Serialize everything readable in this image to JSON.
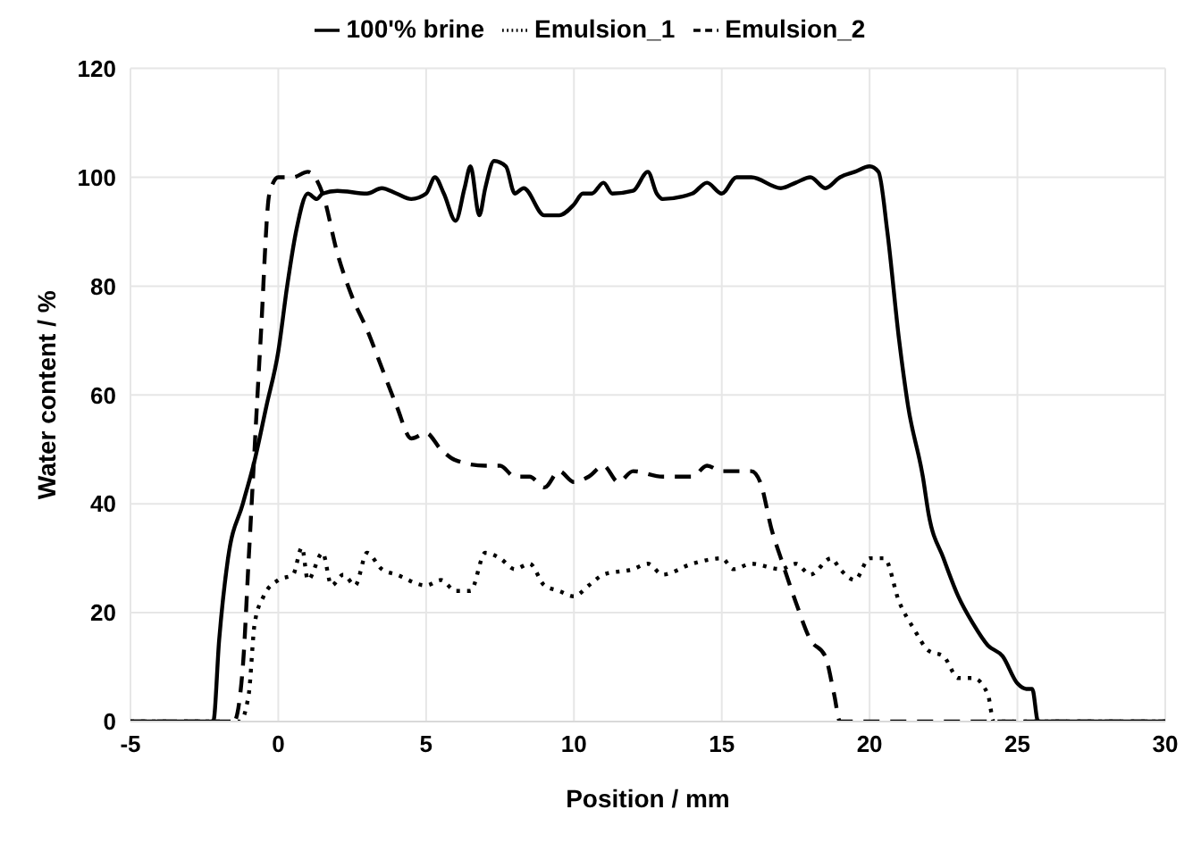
{
  "chart_data": {
    "type": "line",
    "xlabel": "Position   / mm",
    "ylabel": "Water content / %",
    "xlim": [
      -5,
      30
    ],
    "xticks": [
      -5,
      0,
      5,
      10,
      15,
      20,
      25,
      30
    ],
    "ylim": [
      0,
      120
    ],
    "yticks": [
      0,
      20,
      40,
      60,
      80,
      100,
      120
    ],
    "grid": true,
    "legend": "top",
    "marker": "none",
    "series": [
      {
        "name": "100'% brine",
        "color": "#000000",
        "line_style": "solid",
        "x": [
          -5,
          -2.2,
          -2,
          -1.7,
          -1.2,
          -0.8,
          -0.4,
          0,
          0.3,
          0.6,
          1,
          1.3,
          1.5,
          2,
          3,
          3.5,
          4,
          4.5,
          5,
          5.3,
          5.6,
          6,
          6.3,
          6.5,
          6.8,
          7,
          7.3,
          7.7,
          8,
          8.3,
          9,
          9.5,
          10,
          10.3,
          10.6,
          11,
          11.3,
          12,
          12.5,
          12.8,
          13,
          14,
          14.5,
          15,
          15.5,
          16,
          17,
          17.5,
          18,
          18.5,
          19,
          19.5,
          20,
          20.3,
          20.6,
          21,
          21.3,
          21.8,
          22,
          22.5,
          23,
          23.5,
          24,
          24.5,
          25,
          25.3,
          25.5,
          25.7,
          30
        ],
        "values": [
          0,
          0,
          15,
          30,
          40,
          48,
          58,
          68,
          80,
          90,
          97,
          96,
          97,
          97.5,
          97,
          98,
          97,
          96,
          97,
          100,
          97,
          92,
          98,
          102,
          93,
          98,
          103,
          102,
          97,
          98,
          93,
          93,
          95,
          97,
          97,
          99,
          97,
          97.5,
          101,
          97,
          96,
          97,
          99,
          97,
          100,
          100,
          98,
          99,
          100,
          98,
          100,
          101,
          102,
          101,
          90,
          70,
          58,
          45,
          38,
          30,
          23,
          18,
          14,
          12,
          7,
          6,
          6,
          0,
          0
        ]
      },
      {
        "name": "Emulsion_1",
        "color": "#000000",
        "line_style": "dotted",
        "x": [
          -5,
          -1.3,
          -1,
          -0.8,
          -0.5,
          0,
          0.5,
          0.8,
          1,
          1.5,
          1.8,
          2.2,
          2.6,
          3,
          3.5,
          4,
          5,
          5.5,
          6,
          6.5,
          7,
          7.5,
          8,
          8.5,
          9,
          9.5,
          10,
          10.5,
          11,
          12,
          12.5,
          13,
          14,
          15,
          15.4,
          16,
          17,
          17.5,
          18,
          18.7,
          19,
          19.5,
          20,
          20.5,
          21,
          21.5,
          22,
          22.5,
          23,
          23.5,
          24,
          24.2,
          30
        ],
        "values": [
          0,
          0,
          5,
          18,
          23,
          26,
          27,
          32,
          26,
          31,
          25,
          27,
          25,
          31,
          28,
          27,
          25,
          26,
          24,
          24,
          31,
          30,
          28,
          29,
          25,
          24,
          23,
          25,
          27,
          28,
          29,
          27,
          29,
          30,
          28,
          29,
          28,
          29,
          27,
          30,
          28,
          26,
          30,
          30,
          22,
          17,
          13,
          12,
          8,
          8,
          5,
          0,
          0
        ]
      },
      {
        "name": "Emulsion_2",
        "color": "#000000",
        "line_style": "dashed",
        "x": [
          -5,
          -1.5,
          -1.2,
          -1,
          -0.6,
          -0.3,
          0,
          0.5,
          1,
          1.5,
          2,
          2.5,
          3,
          3.5,
          4,
          4.5,
          5,
          5.5,
          6,
          7,
          7.5,
          8,
          8.5,
          9,
          9.5,
          10,
          10.5,
          11,
          11.5,
          12,
          13,
          14,
          14.5,
          15,
          16,
          16.3,
          16.7,
          17,
          17.5,
          18,
          18.5,
          18.8,
          19,
          30
        ],
        "values": [
          0,
          0,
          10,
          30,
          70,
          97,
          100,
          100,
          101,
          97,
          86,
          78,
          72,
          65,
          58,
          52,
          53,
          50,
          48,
          47,
          47,
          45,
          45,
          43,
          46,
          44,
          45,
          47,
          44,
          46,
          45,
          45,
          47,
          46,
          46,
          44,
          35,
          30,
          22,
          15,
          12,
          5,
          0,
          0
        ]
      }
    ]
  }
}
